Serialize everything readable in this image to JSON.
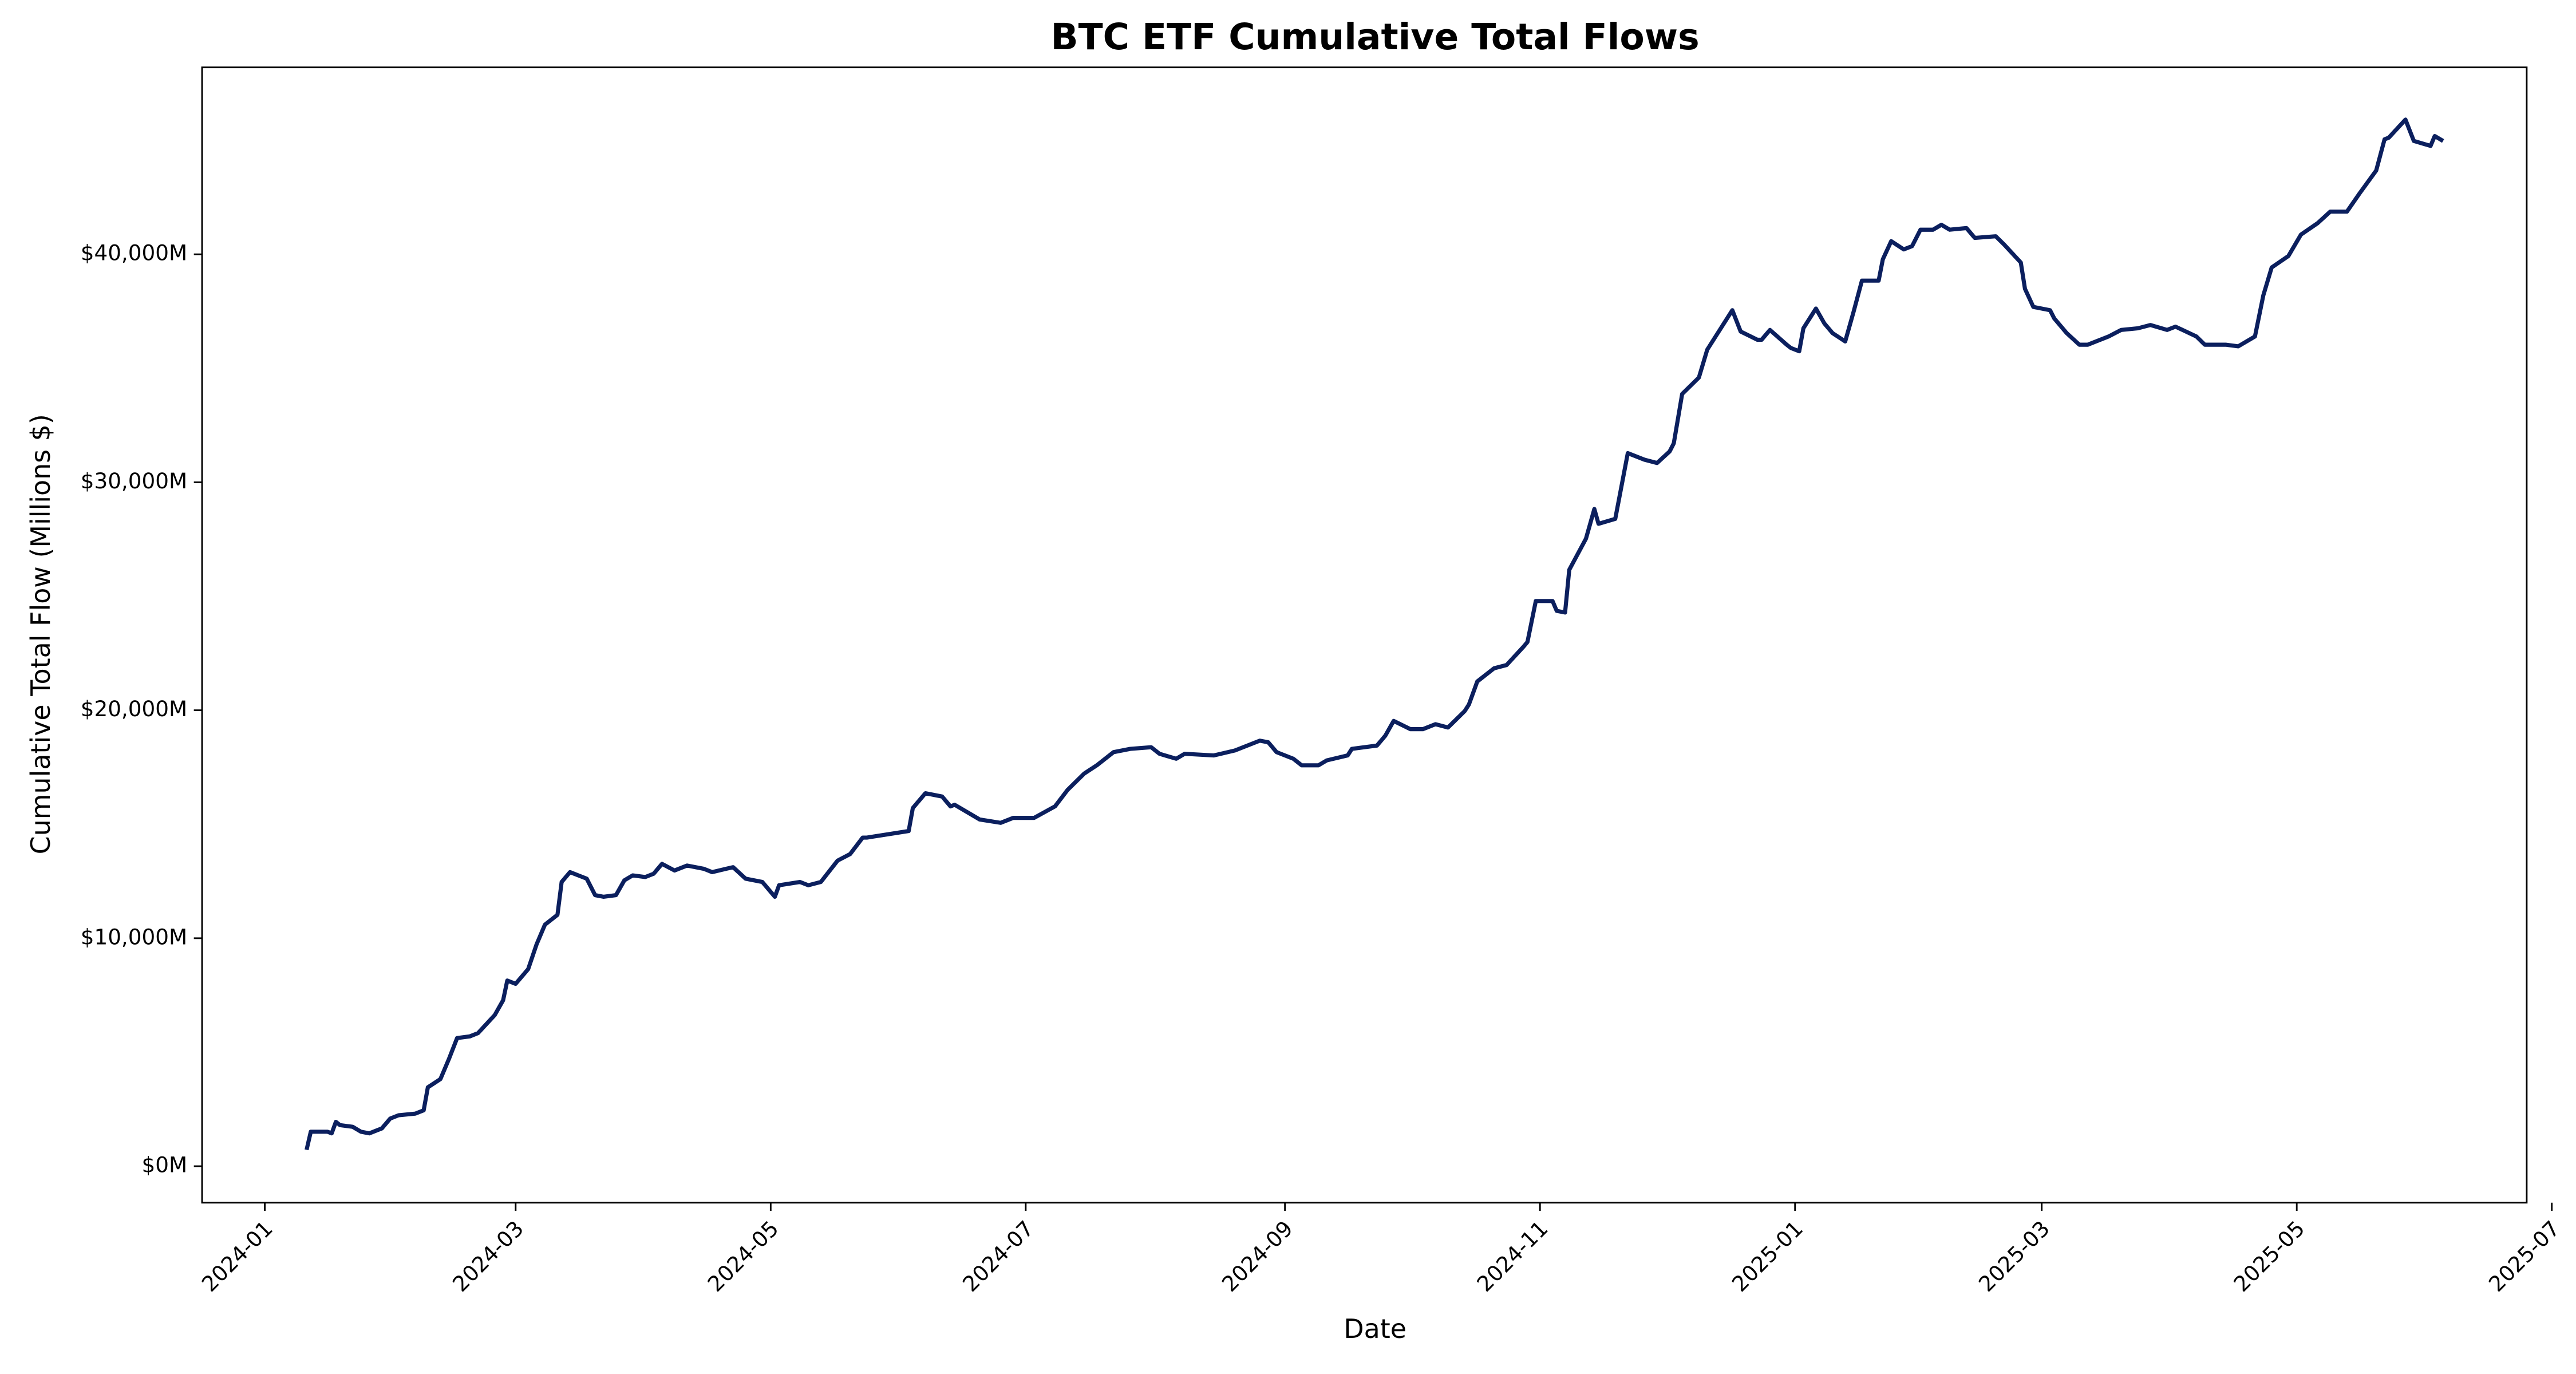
{
  "chart_data": {
    "type": "line",
    "title": "BTC ETF Cumulative Total Flows",
    "xlabel": "Date",
    "ylabel": "Cumulative Total Flow (Millions $)",
    "color": "#0b1f5e",
    "x": [
      "2024-01-11",
      "2024-01-12",
      "2024-01-16",
      "2024-01-17",
      "2024-01-18",
      "2024-01-19",
      "2024-01-22",
      "2024-01-24",
      "2024-01-26",
      "2024-01-29",
      "2024-01-31",
      "2024-02-02",
      "2024-02-06",
      "2024-02-08",
      "2024-02-09",
      "2024-02-12",
      "2024-02-14",
      "2024-02-16",
      "2024-02-19",
      "2024-02-21",
      "2024-02-25",
      "2024-02-27",
      "2024-02-28",
      "2024-03-01",
      "2024-03-04",
      "2024-03-06",
      "2024-03-08",
      "2024-03-11",
      "2024-03-12",
      "2024-03-14",
      "2024-03-18",
      "2024-03-20",
      "2024-03-22",
      "2024-03-25",
      "2024-03-27",
      "2024-03-29",
      "2024-04-01",
      "2024-04-03",
      "2024-04-05",
      "2024-04-08",
      "2024-04-11",
      "2024-04-15",
      "2024-04-17",
      "2024-04-22",
      "2024-04-25",
      "2024-04-29",
      "2024-05-02",
      "2024-05-03",
      "2024-05-08",
      "2024-05-10",
      "2024-05-13",
      "2024-05-17",
      "2024-05-20",
      "2024-05-23",
      "2024-05-24",
      "2024-05-29",
      "2024-06-03",
      "2024-06-04",
      "2024-06-07",
      "2024-06-11",
      "2024-06-13",
      "2024-06-14",
      "2024-06-18",
      "2024-06-20",
      "2024-06-25",
      "2024-06-28",
      "2024-07-03",
      "2024-07-08",
      "2024-07-11",
      "2024-07-15",
      "2024-07-18",
      "2024-07-22",
      "2024-07-26",
      "2024-07-31",
      "2024-08-02",
      "2024-08-06",
      "2024-08-08",
      "2024-08-15",
      "2024-08-20",
      "2024-08-26",
      "2024-08-28",
      "2024-08-30",
      "2024-09-03",
      "2024-09-05",
      "2024-09-09",
      "2024-09-11",
      "2024-09-16",
      "2024-09-17",
      "2024-09-23",
      "2024-09-25",
      "2024-09-27",
      "2024-10-01",
      "2024-10-04",
      "2024-10-07",
      "2024-10-10",
      "2024-10-14",
      "2024-10-15",
      "2024-10-17",
      "2024-10-21",
      "2024-10-24",
      "2024-10-28",
      "2024-10-29",
      "2024-10-31",
      "2024-11-04",
      "2024-11-05",
      "2024-11-07",
      "2024-11-08",
      "2024-11-12",
      "2024-11-14",
      "2024-11-15",
      "2024-11-19",
      "2024-11-22",
      "2024-11-26",
      "2024-11-29",
      "2024-12-02",
      "2024-12-03",
      "2024-12-05",
      "2024-12-09",
      "2024-12-11",
      "2024-12-13",
      "2024-12-17",
      "2024-12-19",
      "2024-12-23",
      "2024-12-24",
      "2024-12-26",
      "2024-12-30",
      "2024-12-31",
      "2025-01-02",
      "2025-01-03",
      "2025-01-06",
      "2025-01-08",
      "2025-01-10",
      "2025-01-13",
      "2025-01-15",
      "2025-01-17",
      "2025-01-21",
      "2025-01-22",
      "2025-01-24",
      "2025-01-27",
      "2025-01-29",
      "2025-01-31",
      "2025-02-03",
      "2025-02-05",
      "2025-02-07",
      "2025-02-11",
      "2025-02-13",
      "2025-02-18",
      "2025-02-20",
      "2025-02-24",
      "2025-02-25",
      "2025-02-27",
      "2025-03-03",
      "2025-03-04",
      "2025-03-07",
      "2025-03-10",
      "2025-03-12",
      "2025-03-17",
      "2025-03-20",
      "2025-03-24",
      "2025-03-27",
      "2025-03-31",
      "2025-04-02",
      "2025-04-07",
      "2025-04-09",
      "2025-04-14",
      "2025-04-17",
      "2025-04-21",
      "2025-04-23",
      "2025-04-25",
      "2025-04-29",
      "2025-05-02",
      "2025-05-06",
      "2025-05-09",
      "2025-05-13",
      "2025-05-16",
      "2025-05-20",
      "2025-05-22",
      "2025-05-23",
      "2025-05-27",
      "2025-05-29",
      "2025-06-02",
      "2025-06-03",
      "2025-06-05"
    ],
    "values": [
      720,
      1513,
      1513,
      1441,
      1946,
      1800,
      1730,
      1513,
      1441,
      1658,
      2090,
      2234,
      2306,
      2450,
      3459,
      3820,
      4684,
      5621,
      5693,
      5838,
      6630,
      7279,
      8144,
      8000,
      8648,
      9729,
      10594,
      11027,
      12468,
      12900,
      12612,
      11891,
      11819,
      11891,
      12540,
      12756,
      12684,
      12828,
      13261,
      12972,
      13189,
      13045,
      12900,
      13117,
      12612,
      12468,
      11819,
      12324,
      12468,
      12324,
      12468,
      13405,
      13693,
      14414,
      14414,
      14558,
      14702,
      15711,
      16360,
      16216,
      15783,
      15855,
      15423,
      15207,
      15062,
      15279,
      15279,
      15783,
      16504,
      17225,
      17585,
      18162,
      18306,
      18378,
      18090,
      17873,
      18090,
      18018,
      18234,
      18667,
      18595,
      18162,
      17873,
      17585,
      17585,
      17801,
      18018,
      18306,
      18450,
      18883,
      19532,
      19171,
      19171,
      19388,
      19244,
      19965,
      20253,
      21262,
      21839,
      21983,
      22776,
      22992,
      24792,
      24792,
      24360,
      24288,
      26161,
      27530,
      28827,
      28179,
      28395,
      31278,
      30990,
      30846,
      31350,
      31710,
      33873,
      34593,
      35818,
      36395,
      37548,
      36611,
      36251,
      36251,
      36683,
      36035,
      35891,
      35747,
      36755,
      37620,
      36972,
      36539,
      36179,
      37476,
      38845,
      38845,
      39782,
      40575,
      40215,
      40359,
      41079,
      41079,
      41295,
      41079,
      41151,
      40719,
      40791,
      40431,
      39638,
      38485,
      37692,
      37548,
      37188,
      36539,
      36035,
      36035,
      36395,
      36683,
      36755,
      36899,
      36683,
      36827,
      36395,
      36035,
      36035,
      35963,
      36395,
      38197,
      39422,
      39926,
      40863,
      41367,
      41871,
      41871,
      42665,
      43674,
      45043,
      45115,
      45909,
      44971,
      44755,
      45187,
      44971
    ],
    "xlim": [
      "2023-12-17",
      "2025-06-25"
    ],
    "xticks": [
      "2024-01",
      "2024-03",
      "2024-05",
      "2024-07",
      "2024-09",
      "2024-11",
      "2025-01",
      "2025-03",
      "2025-05",
      "2025-07"
    ],
    "ylim": [
      -1600,
      48200
    ],
    "yticks": [
      {
        "value": 0,
        "label": "$0M"
      },
      {
        "value": 10000,
        "label": "$10,000M"
      },
      {
        "value": 20000,
        "label": "$20,000M"
      },
      {
        "value": 30000,
        "label": "$30,000M"
      },
      {
        "value": 40000,
        "label": "$40,000M"
      }
    ],
    "grid": false
  }
}
